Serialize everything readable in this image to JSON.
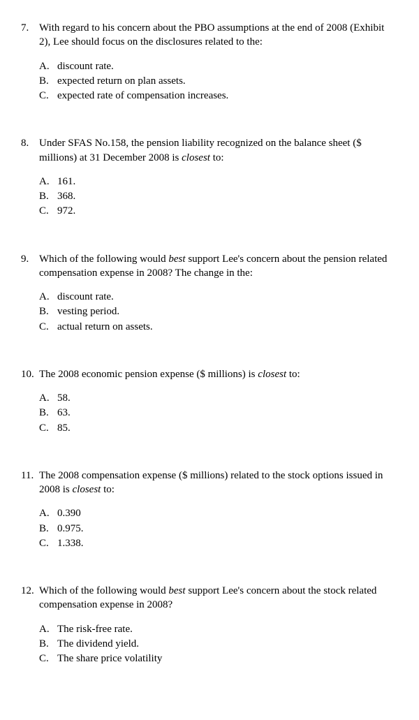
{
  "questions": [
    {
      "number": "7.",
      "text_pre": "With regard to his concern about the PBO assumptions at the end of 2008 (Exhibit 2), Lee should focus on the disclosures related to the:",
      "text_italic": "",
      "text_post": "",
      "options": [
        {
          "letter": "A.",
          "text": "discount rate."
        },
        {
          "letter": "B.",
          "text": "expected return on plan assets."
        },
        {
          "letter": "C.",
          "text": "expected rate of compensation increases."
        }
      ]
    },
    {
      "number": "8.",
      "text_pre": "Under SFAS No.158, the pension liability recognized on the balance sheet ($ millions) at 31 December 2008 is ",
      "text_italic": "closest",
      "text_post": " to:",
      "options": [
        {
          "letter": "A.",
          "text": "161."
        },
        {
          "letter": "B.",
          "text": "368."
        },
        {
          "letter": "C.",
          "text": "972."
        }
      ]
    },
    {
      "number": "9.",
      "text_pre": "Which of the following would ",
      "text_italic": "best",
      "text_post": " support Lee's concern about the pension related compensation expense in 2008?  The change in the:",
      "options": [
        {
          "letter": "A.",
          "text": "discount rate."
        },
        {
          "letter": "B.",
          "text": "vesting period."
        },
        {
          "letter": "C.",
          "text": "actual return on assets."
        }
      ]
    },
    {
      "number": "10.",
      "text_pre": "The 2008 economic pension expense ($ millions) is ",
      "text_italic": "closest",
      "text_post": " to:",
      "options": [
        {
          "letter": "A.",
          "text": "58."
        },
        {
          "letter": "B.",
          "text": "63."
        },
        {
          "letter": "C.",
          "text": "85."
        }
      ]
    },
    {
      "number": "11.",
      "text_pre": "The 2008 compensation expense ($ millions) related to the stock options issued in 2008 is ",
      "text_italic": "closest",
      "text_post": " to:",
      "options": [
        {
          "letter": "A.",
          "text": "0.390"
        },
        {
          "letter": "B.",
          "text": "0.975."
        },
        {
          "letter": "C.",
          "text": "1.338."
        }
      ]
    },
    {
      "number": "12.",
      "text_pre": "Which of the following would ",
      "text_italic": "best",
      "text_post": " support Lee's concern about the stock related compensation expense in 2008?",
      "options": [
        {
          "letter": "A.",
          "text": "The risk-free rate."
        },
        {
          "letter": "B.",
          "text": "The dividend yield."
        },
        {
          "letter": "C.",
          "text": "The share price volatility"
        }
      ]
    }
  ]
}
